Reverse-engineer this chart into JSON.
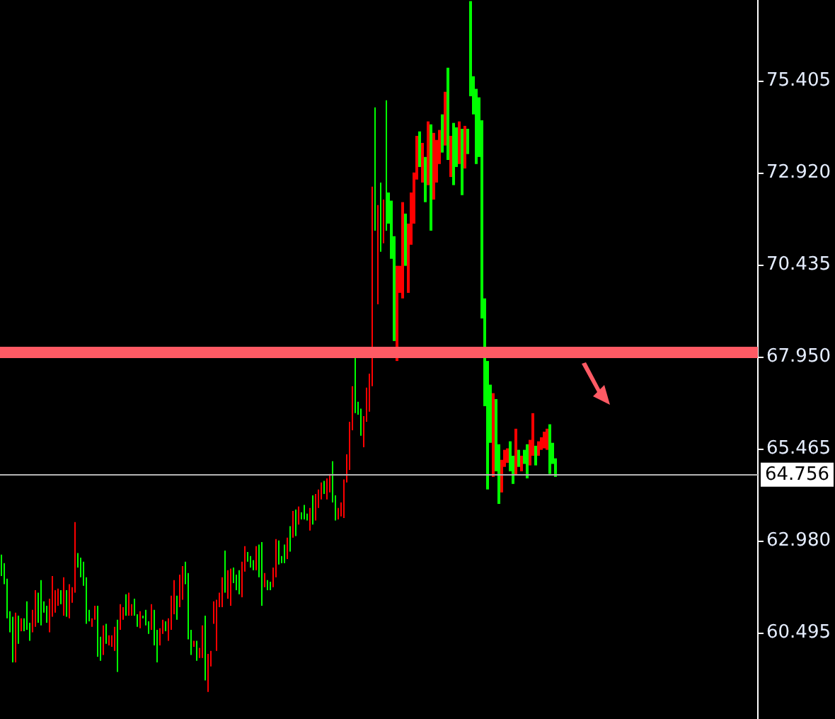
{
  "chart_data": {
    "type": "candlestick",
    "tick_labels": "y",
    "grid": false,
    "colors": [
      "#00ff00",
      "#00ff00",
      "#00ff00",
      "#00ff00",
      "#00ff00",
      "#ff0000",
      "#00ff00",
      "#ff0000",
      "#00ff00",
      "#00ff00",
      "#00ff00",
      "#ff0000",
      "#ff0000",
      "#00ff00",
      "#00ff00",
      "#00ff00",
      "#00ff00",
      "#ff0000",
      "#ff0000",
      "#ff0000",
      "#ff0000",
      "#00ff00",
      "#ff0000",
      "#00ff00",
      "#ff0000",
      "#ff0000",
      "#ff0000",
      "#00ff00",
      "#00ff00",
      "#00ff00",
      "#00ff00",
      "#00ff00",
      "#ff0000",
      "#ff0000",
      "#00ff00",
      "#00ff00",
      "#ff0000",
      "#00ff00",
      "#ff0000",
      "#ff0000",
      "#ff0000",
      "#00ff00",
      "#ff0000",
      "#ff0000",
      "#00ff00",
      "#ff0000",
      "#ff0000",
      "#00ff00",
      "#00ff00",
      "#ff0000",
      "#00ff00",
      "#00ff00",
      "#00ff00",
      "#ff0000",
      "#00ff00",
      "#00ff00",
      "#ff0000",
      "#ff0000",
      "#00ff00",
      "#ff0000",
      "#ff0000",
      "#ff0000",
      "#00ff00",
      "#ff0000",
      "#ff0000",
      "#00ff00",
      "#00ff00",
      "#00ff00",
      "#ff0000",
      "#00ff00",
      "#ff0000",
      "#ff0000",
      "#00ff00",
      "#ff0000",
      "#ff0000",
      "#ff0000",
      "#ff0000",
      "#ff0000",
      "#ff0000",
      "#00ff00",
      "#ff0000",
      "#ff0000",
      "#00ff00",
      "#00ff00",
      "#00ff00",
      "#ff0000",
      "#ff0000",
      "#00ff00",
      "#00ff00",
      "#00ff00",
      "#ff0000",
      "#00ff00",
      "#00ff00",
      "#ff0000",
      "#00ff00",
      "#00ff00",
      "#ff0000",
      "#ff0000",
      "#00ff00",
      "#00ff00",
      "#00ff00",
      "#ff0000",
      "#00ff00",
      "#ff0000",
      "#00ff00",
      "#ff0000",
      "#00ff00",
      "#00ff00",
      "#00ff00",
      "#ff0000",
      "#00ff00",
      "#ff0000",
      "#ff0000",
      "#ff0000",
      "#00ff00",
      "#ff0000",
      "#ff0000",
      "#00ff00",
      "#00ff00",
      "#ff0000",
      "#ff0000",
      "#ff0000",
      "#ff0000",
      "#ff0000",
      "#ff0000",
      "#00ff00",
      "#00ff00",
      "#00ff00",
      "#ff0000",
      "#ff0000",
      "#ff0000",
      "#ff0000",
      "#00ff00",
      "#ff0000",
      "#00ff00",
      "#ff0000",
      "#00ff00",
      "#00ff00",
      "#00ff00",
      "#00ff00",
      "#ff0000",
      "#ff0000",
      "#ff0000",
      "#00ff00",
      "#ff0000",
      "#ff0000",
      "#ff0000",
      "#ff0000",
      "#00ff00",
      "#ff0000",
      "#00ff00",
      "#ff0000",
      "#00ff00",
      "#ff0000",
      "#ff0000",
      "#ff0000",
      "#00ff00",
      "#ff0000",
      "#00ff00",
      "#ff0000",
      "#00ff00",
      "#00ff00",
      "#ff0000",
      "#00ff00",
      "#ff0000",
      "#00ff00",
      "#00ff00",
      "#00ff00",
      "#00ff00",
      "#00ff00",
      "#00ff00",
      "#00ff00",
      "#00ff00",
      "#00ff00",
      "#ff0000",
      "#00ff00",
      "#00ff00",
      "#ff0000",
      "#ff0000",
      "#ff0000",
      "#00ff00",
      "#00ff00",
      "#ff0000",
      "#00ff00",
      "#ff0000",
      "#00ff00",
      "#00ff00",
      "#ff0000",
      "#ff0000",
      "#00ff00",
      "#ff0000",
      "#ff0000",
      "#ff0000",
      "#ff0000",
      "#00ff00",
      "#00ff00",
      "#00ff00",
      null,
      null,
      null,
      null,
      null,
      null,
      null,
      null,
      null,
      null,
      null,
      null,
      null,
      null,
      null,
      null,
      null,
      null,
      null,
      null,
      null,
      null,
      null,
      null,
      null,
      null,
      null,
      null,
      null,
      null,
      null,
      null,
      null,
      null,
      null,
      null,
      null,
      null,
      null,
      null,
      null,
      null,
      null,
      null,
      null,
      null,
      null,
      null,
      null,
      null,
      null,
      null,
      null,
      null,
      null,
      null,
      null,
      null,
      null,
      null,
      null,
      null,
      null,
      null,
      null,
      null,
      null,
      null,
      null,
      null,
      null
    ],
    "ylim": [
      58.16,
      77.58
    ],
    "yticks": [
      60.495,
      {
        "value": 62.98,
        "label": "62.980"
      },
      65.465,
      {
        "value": 67.95,
        "label": "67.950"
      },
      70.435,
      {
        "value": 72.92,
        "label": "72.920"
      },
      75.405
    ],
    "ref_lines": [
      {
        "axis": "y",
        "value": 68.07,
        "label": null,
        "color": "#ff5a64"
      },
      {
        "axis": "y",
        "value": 64.756,
        "label": "64.756",
        "color": "#b4b4b4"
      }
    ],
    "categories": [
      null,
      null,
      null,
      null,
      null,
      null,
      null,
      null,
      null,
      null,
      null,
      null,
      null,
      null,
      null,
      null,
      null,
      null,
      null,
      null,
      null,
      null,
      null,
      null,
      null,
      null,
      null,
      null,
      null,
      null,
      null,
      null,
      null,
      null,
      null,
      null,
      null,
      null,
      null,
      null,
      null,
      null,
      null,
      null,
      null,
      null,
      null,
      null,
      null,
      null,
      null,
      null,
      null,
      null,
      null,
      null,
      null,
      null,
      null,
      null,
      null,
      null,
      null,
      null,
      null,
      null,
      null,
      null,
      null,
      null,
      null,
      null,
      null,
      null,
      null,
      null,
      null,
      null,
      null,
      null,
      null,
      null,
      null,
      null,
      null,
      null,
      null,
      null,
      null,
      null,
      null,
      null,
      null,
      null,
      null,
      null,
      null,
      null,
      null,
      null,
      null,
      null,
      null,
      null,
      null,
      null,
      null,
      null,
      null,
      null,
      null,
      null,
      null,
      null,
      null,
      null,
      null,
      null,
      null,
      null,
      null,
      null,
      null,
      null,
      null,
      null,
      null,
      null,
      null,
      null,
      null,
      null,
      null,
      null,
      null,
      null,
      null,
      null,
      null,
      null,
      null,
      null,
      null,
      null,
      null,
      null,
      null,
      null,
      null,
      null,
      null,
      null,
      null,
      null,
      null,
      null,
      null,
      null,
      null,
      null,
      null,
      null,
      null,
      null,
      null,
      null,
      null,
      null,
      null,
      null,
      null,
      null,
      null,
      null,
      null,
      null,
      null,
      null,
      null,
      null,
      null,
      null,
      null,
      null,
      null,
      null,
      null,
      null,
      null,
      null,
      null,
      null,
      null,
      null,
      null,
      null,
      null,
      null,
      null,
      null,
      null,
      null,
      null,
      null,
      null,
      null,
      null,
      null,
      null,
      null,
      null,
      null,
      null,
      null,
      null,
      null,
      null,
      null,
      null,
      null,
      null,
      null,
      null,
      null,
      null,
      null,
      null,
      null,
      null,
      null,
      null,
      null,
      null,
      null,
      null,
      null,
      null,
      null,
      null,
      null,
      null,
      null,
      null,
      null,
      null,
      null,
      null,
      null,
      null,
      null,
      null,
      null,
      null,
      null,
      null,
      null,
      null,
      null,
      null,
      null,
      null,
      null,
      null,
      null,
      null,
      null,
      null,
      null
    ],
    "ohlc": [
      [
        62.02,
        62.6,
        62.02,
        62.6
      ],
      [
        61.8,
        62.37,
        61.8,
        62.37
      ],
      [
        60.88,
        61.95,
        60.88,
        61.95
      ],
      [
        60.5,
        61.07,
        60.5,
        61.07
      ],
      [
        59.69,
        60.92,
        59.69,
        60.92
      ],
      [
        61.03,
        61.03,
        59.69,
        59.69
      ],
      [
        60.19,
        60.95,
        60.19,
        60.95
      ],
      [
        60.88,
        60.88,
        60.53,
        60.53
      ],
      [
        60.53,
        60.88,
        60.53,
        60.88
      ],
      [
        60.57,
        61.34,
        60.57,
        61.34
      ],
      [
        60.27,
        60.76,
        60.27,
        60.76
      ],
      [
        61.11,
        61.11,
        60.5,
        60.5
      ],
      [
        61.64,
        61.64,
        60.65,
        60.65
      ],
      [
        60.76,
        61.57,
        60.76,
        61.57
      ],
      [
        60.69,
        61.91,
        60.69,
        61.91
      ],
      [
        61.03,
        61.34,
        61.03,
        61.34
      ],
      [
        60.76,
        61.22,
        60.76,
        61.22
      ],
      [
        61.41,
        61.41,
        60.5,
        60.5
      ],
      [
        62.02,
        62.02,
        60.92,
        60.92
      ],
      [
        61.64,
        61.64,
        61.03,
        61.03
      ],
      [
        61.68,
        61.68,
        61.22,
        61.22
      ],
      [
        61.26,
        61.64,
        61.26,
        61.64
      ],
      [
        61.99,
        61.99,
        60.95,
        60.95
      ],
      [
        60.92,
        61.64,
        60.92,
        61.64
      ],
      [
        61.8,
        61.8,
        60.88,
        60.88
      ],
      [
        61.72,
        61.72,
        61.3,
        61.3
      ],
      [
        63.48,
        63.48,
        61.57,
        61.57
      ],
      [
        62.25,
        62.64,
        62.25,
        62.64
      ],
      [
        61.99,
        62.52,
        61.99,
        62.52
      ],
      [
        61.76,
        62.41,
        61.76,
        62.41
      ],
      [
        60.73,
        61.99,
        60.73,
        61.99
      ],
      [
        60.8,
        61.11,
        60.8,
        61.11
      ],
      [
        60.88,
        60.88,
        60.65,
        60.65
      ],
      [
        61.22,
        61.22,
        60.84,
        60.84
      ],
      [
        59.84,
        61.22,
        59.84,
        61.22
      ],
      [
        59.73,
        60.38,
        59.73,
        60.38
      ],
      [
        60.69,
        60.69,
        59.89,
        59.89
      ],
      [
        60.19,
        60.73,
        60.19,
        60.73
      ],
      [
        60.42,
        60.42,
        60.15,
        60.15
      ],
      [
        60.42,
        60.42,
        60.11,
        60.11
      ],
      [
        60.65,
        60.65,
        60.0,
        60.0
      ],
      [
        59.43,
        60.84,
        59.43,
        60.84
      ],
      [
        61.26,
        61.26,
        60.57,
        60.57
      ],
      [
        61.18,
        61.18,
        60.84,
        60.84
      ],
      [
        60.95,
        61.53,
        60.95,
        61.53
      ],
      [
        61.57,
        61.57,
        60.95,
        60.95
      ],
      [
        61.26,
        61.26,
        60.95,
        60.95
      ],
      [
        60.95,
        61.41,
        60.95,
        61.41
      ],
      [
        60.65,
        60.99,
        60.65,
        60.99
      ],
      [
        61.07,
        61.07,
        60.61,
        60.61
      ],
      [
        60.88,
        60.95,
        60.88,
        60.95
      ],
      [
        60.69,
        61.11,
        60.69,
        61.11
      ],
      [
        60.46,
        60.8,
        60.46,
        60.8
      ],
      [
        61.26,
        61.26,
        60.57,
        60.57
      ],
      [
        60.15,
        61.11,
        60.15,
        61.11
      ],
      [
        59.69,
        60.57,
        59.69,
        60.57
      ],
      [
        60.61,
        60.61,
        60.15,
        60.15
      ],
      [
        60.84,
        60.84,
        60.46,
        60.46
      ],
      [
        60.53,
        60.8,
        60.53,
        60.8
      ],
      [
        60.88,
        60.88,
        60.27,
        60.27
      ],
      [
        61.49,
        61.49,
        60.57,
        60.57
      ],
      [
        61.91,
        61.91,
        60.99,
        60.99
      ],
      [
        60.84,
        61.49,
        60.84,
        61.49
      ],
      [
        62.06,
        62.06,
        61.18,
        61.18
      ],
      [
        62.29,
        62.29,
        61.38,
        61.38
      ],
      [
        61.8,
        62.41,
        61.8,
        62.41
      ],
      [
        60.31,
        62.1,
        60.31,
        62.1
      ],
      [
        59.89,
        60.57,
        59.89,
        60.57
      ],
      [
        60.27,
        60.27,
        60.11,
        60.11
      ],
      [
        59.73,
        60.27,
        59.73,
        60.27
      ],
      [
        60.08,
        60.08,
        59.81,
        59.81
      ],
      [
        60.69,
        60.69,
        59.81,
        59.81
      ],
      [
        59.2,
        60.95,
        59.2,
        60.95
      ],
      [
        59.92,
        59.92,
        58.89,
        58.89
      ],
      [
        60.0,
        60.0,
        59.58,
        59.58
      ],
      [
        61.34,
        61.34,
        60.73,
        60.73
      ],
      [
        61.38,
        61.38,
        60.0,
        60.0
      ],
      [
        61.57,
        61.57,
        61.18,
        61.18
      ],
      [
        61.99,
        61.99,
        61.18,
        61.18
      ],
      [
        61.57,
        62.71,
        61.57,
        62.71
      ],
      [
        62.18,
        62.18,
        61.41,
        61.41
      ],
      [
        62.22,
        62.22,
        61.22,
        61.22
      ],
      [
        61.83,
        62.25,
        61.83,
        62.25
      ],
      [
        61.64,
        62.06,
        61.64,
        62.06
      ],
      [
        61.53,
        62.18,
        61.53,
        62.18
      ],
      [
        62.41,
        62.41,
        61.45,
        61.45
      ],
      [
        62.83,
        62.83,
        62.14,
        62.14
      ],
      [
        62.41,
        62.67,
        62.41,
        62.67
      ],
      [
        62.25,
        62.56,
        62.25,
        62.56
      ],
      [
        62.18,
        62.45,
        62.18,
        62.45
      ],
      [
        62.83,
        62.83,
        62.18,
        62.18
      ],
      [
        61.99,
        62.87,
        61.99,
        62.87
      ],
      [
        61.22,
        62.94,
        61.22,
        62.94
      ],
      [
        62.1,
        62.1,
        61.72,
        61.72
      ],
      [
        61.64,
        61.91,
        61.64,
        61.91
      ],
      [
        61.64,
        61.87,
        61.64,
        61.87
      ],
      [
        62.25,
        62.25,
        61.72,
        61.72
      ],
      [
        63.02,
        63.02,
        61.99,
        61.99
      ],
      [
        62.33,
        62.98,
        62.33,
        62.98
      ],
      [
        62.37,
        62.56,
        62.37,
        62.56
      ],
      [
        62.37,
        62.87,
        62.37,
        62.87
      ],
      [
        63.06,
        63.06,
        62.48,
        62.48
      ],
      [
        62.68,
        63.37,
        62.68,
        63.37
      ],
      [
        63.78,
        63.78,
        63.06,
        63.06
      ],
      [
        63.1,
        63.82,
        63.1,
        63.82
      ],
      [
        63.9,
        63.9,
        63.41,
        63.41
      ],
      [
        63.55,
        63.74,
        63.55,
        63.74
      ],
      [
        63.55,
        63.94,
        63.55,
        63.94
      ],
      [
        63.52,
        63.71,
        63.52,
        63.71
      ],
      [
        63.86,
        63.86,
        63.25,
        63.25
      ],
      [
        63.41,
        64.2,
        63.41,
        64.2
      ],
      [
        64.24,
        64.24,
        63.52,
        63.52
      ],
      [
        64.36,
        64.36,
        63.86,
        63.86
      ],
      [
        64.55,
        64.55,
        64.09,
        64.09
      ],
      [
        64.24,
        64.59,
        64.24,
        64.59
      ],
      [
        64.66,
        64.66,
        64.09,
        64.09
      ],
      [
        64.78,
        64.78,
        64.28,
        64.28
      ],
      [
        64.01,
        65.12,
        64.01,
        65.12
      ],
      [
        63.52,
        64.2,
        63.52,
        64.2
      ],
      [
        63.86,
        63.86,
        63.55,
        63.55
      ],
      [
        64.01,
        64.01,
        63.63,
        63.63
      ],
      [
        64.63,
        64.63,
        63.59,
        63.59
      ],
      [
        65.31,
        65.31,
        64.55,
        64.55
      ],
      [
        66.19,
        66.19,
        64.89,
        64.89
      ],
      [
        67.15,
        67.15,
        65.96,
        65.96
      ],
      [
        66.42,
        67.91,
        66.42,
        67.91
      ],
      [
        66.38,
        66.73,
        66.38,
        66.73
      ],
      [
        65.81,
        66.54,
        65.81,
        66.54
      ],
      [
        66.34,
        66.34,
        65.5,
        65.5
      ],
      [
        67.11,
        67.11,
        66.19,
        66.19
      ],
      [
        67.49,
        67.49,
        66.46,
        66.46
      ],
      [
        72.54,
        72.54,
        67.15,
        67.15
      ],
      [
        71.35,
        74.68,
        71.35,
        74.68
      ],
      [
        72.04,
        72.04,
        69.36,
        69.36
      ],
      [
        70.78,
        72.65,
        70.78,
        72.65
      ],
      [
        72.19,
        72.19,
        71.01,
        71.01
      ],
      [
        71.35,
        74.87,
        71.35,
        74.87
      ],
      [
        71.54,
        72.38,
        71.54,
        72.38
      ],
      [
        70.59,
        72.16,
        70.59,
        72.16
      ],
      [
        68.37,
        71.2,
        68.37,
        71.2
      ],
      [
        70.4,
        70.4,
        67.83,
        67.83
      ],
      [
        70.4,
        70.4,
        69.67,
        69.67
      ],
      [
        72.12,
        72.12,
        69.52,
        69.52
      ],
      [
        70.4,
        71.81,
        70.4,
        71.81
      ],
      [
        71.54,
        71.54,
        69.67,
        69.67
      ],
      [
        72.38,
        72.38,
        70.97,
        70.97
      ],
      [
        72.92,
        72.92,
        71.54,
        71.54
      ],
      [
        73.91,
        73.91,
        72.73,
        72.73
      ],
      [
        73.07,
        74.03,
        73.07,
        74.03
      ],
      [
        73.72,
        73.72,
        72.65,
        72.65
      ],
      [
        72.12,
        73.34,
        72.12,
        73.34
      ],
      [
        74.3,
        74.3,
        72.58,
        72.58
      ],
      [
        71.35,
        74.22,
        71.35,
        74.22
      ],
      [
        73.99,
        73.99,
        72.19,
        72.19
      ],
      [
        73.8,
        73.8,
        72.65,
        72.65
      ],
      [
        74.07,
        74.07,
        73.15,
        73.15
      ],
      [
        73.46,
        74.49,
        73.46,
        74.49
      ],
      [
        75.1,
        75.1,
        73.65,
        73.65
      ],
      [
        73.26,
        75.75,
        73.26,
        75.75
      ],
      [
        73.91,
        73.91,
        72.8,
        72.8
      ],
      [
        72.58,
        74.26,
        72.58,
        74.26
      ],
      [
        73.07,
        74.14,
        73.07,
        74.14
      ],
      [
        74.3,
        74.3,
        73.15,
        73.15
      ],
      [
        72.31,
        74.1,
        72.31,
        74.1
      ],
      [
        74.18,
        74.18,
        73.03,
        73.03
      ],
      [
        73.42,
        74.1,
        73.42,
        74.1
      ],
      [
        74.98,
        77.55,
        74.98,
        77.55
      ],
      [
        74.49,
        75.52,
        74.49,
        75.52
      ],
      [
        73.15,
        75.18,
        73.15,
        75.18
      ],
      [
        73.34,
        74.95,
        73.34,
        74.95
      ],
      [
        68.98,
        74.33,
        68.98,
        74.33
      ],
      [
        66.61,
        69.52,
        66.61,
        69.52
      ],
      [
        64.36,
        67.83,
        64.36,
        67.83
      ],
      [
        65.62,
        67.19,
        65.62,
        67.19
      ],
      [
        66.96,
        66.96,
        64.7,
        64.7
      ],
      [
        64.85,
        66.8,
        64.85,
        66.8
      ],
      [
        63.97,
        65.58,
        63.97,
        65.58
      ],
      [
        65.16,
        65.16,
        64.28,
        64.28
      ],
      [
        65.43,
        65.43,
        64.97,
        64.97
      ],
      [
        65.47,
        65.47,
        65.08,
        65.08
      ],
      [
        64.85,
        65.66,
        64.85,
        65.66
      ],
      [
        64.51,
        65.27,
        64.51,
        65.27
      ],
      [
        66.0,
        66.0,
        64.74,
        64.74
      ],
      [
        64.97,
        65.43,
        64.97,
        65.43
      ],
      [
        65.27,
        65.27,
        64.85,
        64.85
      ],
      [
        65.05,
        65.43,
        65.05,
        65.43
      ],
      [
        64.66,
        65.58,
        64.66,
        65.58
      ],
      [
        65.7,
        65.7,
        65.01,
        65.01
      ],
      [
        66.42,
        66.42,
        65.27,
        65.27
      ],
      [
        65.01,
        65.54,
        65.01,
        65.54
      ],
      [
        65.66,
        65.66,
        65.27,
        65.27
      ],
      [
        65.77,
        65.77,
        65.43,
        65.43
      ],
      [
        65.92,
        65.92,
        65.47,
        65.47
      ],
      [
        66.0,
        66.0,
        65.43,
        65.43
      ],
      [
        64.78,
        66.12,
        64.78,
        66.12
      ],
      [
        65.05,
        65.62,
        65.05,
        65.62
      ],
      [
        64.7,
        65.2,
        64.7,
        65.2
      ],
      null,
      null,
      null,
      null,
      null,
      null,
      null,
      null,
      null,
      null,
      null,
      null,
      null,
      null,
      null,
      null,
      null,
      null,
      null,
      null,
      null,
      null,
      null,
      null,
      null,
      null,
      null,
      null,
      null,
      null,
      null,
      null,
      null,
      null,
      null,
      null,
      null,
      null,
      null,
      null,
      null,
      null,
      null,
      null,
      null,
      null,
      null,
      null,
      null,
      null,
      null,
      null,
      null,
      null,
      null,
      null,
      null,
      null,
      null,
      null,
      null,
      null,
      null,
      null,
      null,
      null,
      null,
      null,
      null,
      null,
      null
    ]
  }
}
